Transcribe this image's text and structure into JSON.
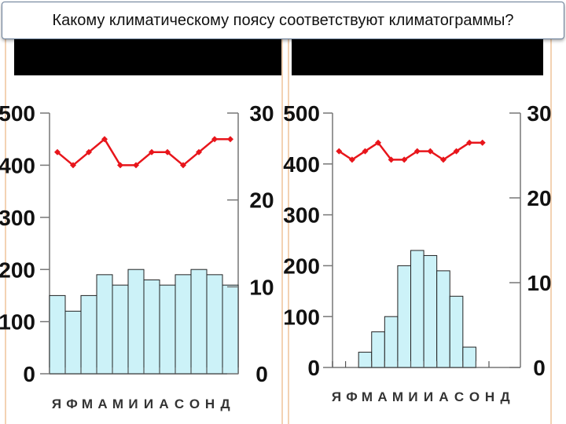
{
  "title": "Какому климатическому поясу соответствуют климатограммы?",
  "colors": {
    "bar_fill": "#ccf2f8",
    "bar_stroke": "#222222",
    "temp_line": "#e8151b",
    "band": "#000000",
    "edge": "#f3d2b3"
  },
  "chart_data": [
    {
      "type": "bar",
      "categories": [
        "Я",
        "Ф",
        "М",
        "А",
        "М",
        "И",
        "И",
        "А",
        "С",
        "О",
        "Н",
        "Д"
      ],
      "series": [
        {
          "values": [
            150,
            120,
            150,
            190,
            170,
            200,
            180,
            170,
            190,
            200,
            190,
            170
          ]
        }
      ],
      "line_series": [
        {
          "values": [
            25.5,
            24.0,
            25.5,
            27.0,
            24.0,
            24.0,
            25.5,
            25.5,
            24.0,
            25.5,
            27.0,
            27.0
          ]
        }
      ],
      "left_axis": {
        "ticks": [
          "0",
          "100",
          "200",
          "300",
          "400",
          "500"
        ],
        "ylim": [
          0,
          500
        ]
      },
      "right_axis": {
        "ticks": [
          "0",
          "10",
          "20",
          "30"
        ],
        "ylim": [
          0,
          30
        ]
      },
      "xlabel": "",
      "ylabel": ""
    },
    {
      "type": "bar",
      "categories": [
        "Я",
        "Ф",
        "М",
        "А",
        "М",
        "И",
        "И",
        "А",
        "С",
        "О",
        "Н",
        "Д"
      ],
      "series": [
        {
          "values": [
            0,
            0,
            30,
            70,
            100,
            200,
            230,
            220,
            190,
            140,
            40,
            0
          ]
        }
      ],
      "line_series": [
        {
          "values": [
            25.5,
            24.5,
            25.5,
            26.5,
            24.5,
            24.5,
            25.5,
            25.5,
            24.5,
            25.5,
            26.5,
            26.5
          ]
        }
      ],
      "left_axis": {
        "ticks": [
          "0",
          "100",
          "200",
          "300",
          "400",
          "500"
        ],
        "ylim": [
          0,
          500
        ]
      },
      "right_axis": {
        "ticks": [
          "0",
          "10",
          "20",
          "30"
        ],
        "ylim": [
          0,
          30
        ]
      },
      "xlabel": "",
      "ylabel": ""
    }
  ]
}
